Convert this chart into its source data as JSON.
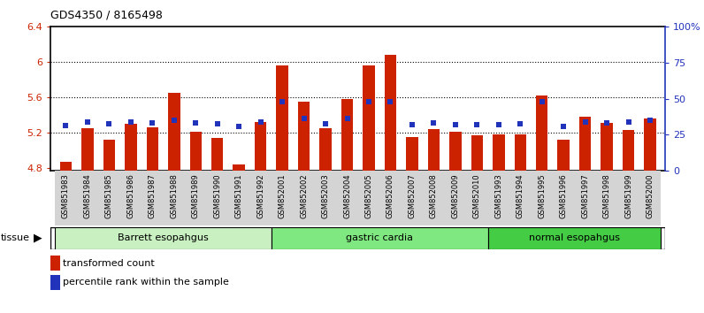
{
  "title": "GDS4350 / 8165498",
  "samples": [
    "GSM851983",
    "GSM851984",
    "GSM851985",
    "GSM851986",
    "GSM851987",
    "GSM851988",
    "GSM851989",
    "GSM851990",
    "GSM851991",
    "GSM851992",
    "GSM852001",
    "GSM852002",
    "GSM852003",
    "GSM852004",
    "GSM852005",
    "GSM852006",
    "GSM852007",
    "GSM852008",
    "GSM852009",
    "GSM852010",
    "GSM851993",
    "GSM851994",
    "GSM851995",
    "GSM851996",
    "GSM851997",
    "GSM851998",
    "GSM851999",
    "GSM852000"
  ],
  "bar_values": [
    4.87,
    5.25,
    5.12,
    5.3,
    5.26,
    5.65,
    5.21,
    5.14,
    4.84,
    5.32,
    5.96,
    5.55,
    5.25,
    5.58,
    5.96,
    6.08,
    5.15,
    5.24,
    5.21,
    5.17,
    5.18,
    5.18,
    5.62,
    5.12,
    5.38,
    5.31,
    5.23,
    5.36
  ],
  "blue_values": [
    5.285,
    5.325,
    5.3,
    5.325,
    5.315,
    5.34,
    5.315,
    5.3,
    5.275,
    5.325,
    5.555,
    5.36,
    5.3,
    5.36,
    5.555,
    5.555,
    5.295,
    5.315,
    5.295,
    5.295,
    5.295,
    5.3,
    5.555,
    5.275,
    5.325,
    5.315,
    5.325,
    5.34
  ],
  "groups": [
    {
      "label": "Barrett esopahgus",
      "start": 0,
      "end": 9,
      "color": "#c8f0c0"
    },
    {
      "label": "gastric cardia",
      "start": 10,
      "end": 19,
      "color": "#80e880"
    },
    {
      "label": "normal esopahgus",
      "start": 20,
      "end": 27,
      "color": "#44cc44"
    }
  ],
  "ymin": 4.775,
  "ymax": 6.4,
  "yticks": [
    4.8,
    5.2,
    5.6,
    6.0,
    6.4
  ],
  "ytick_labels": [
    "4.8",
    "5.2",
    "5.6",
    "6",
    "6.4"
  ],
  "y2ticks": [
    0,
    25,
    50,
    75,
    100
  ],
  "y2tick_labels": [
    "0",
    "25",
    "50",
    "75",
    "100%"
  ],
  "bar_color": "#cc2200",
  "dot_color": "#2233bb",
  "bar_width": 0.55,
  "grid_lines": [
    5.2,
    5.6,
    6.0
  ],
  "legend_labels": [
    "transformed count",
    "percentile rank within the sample"
  ]
}
